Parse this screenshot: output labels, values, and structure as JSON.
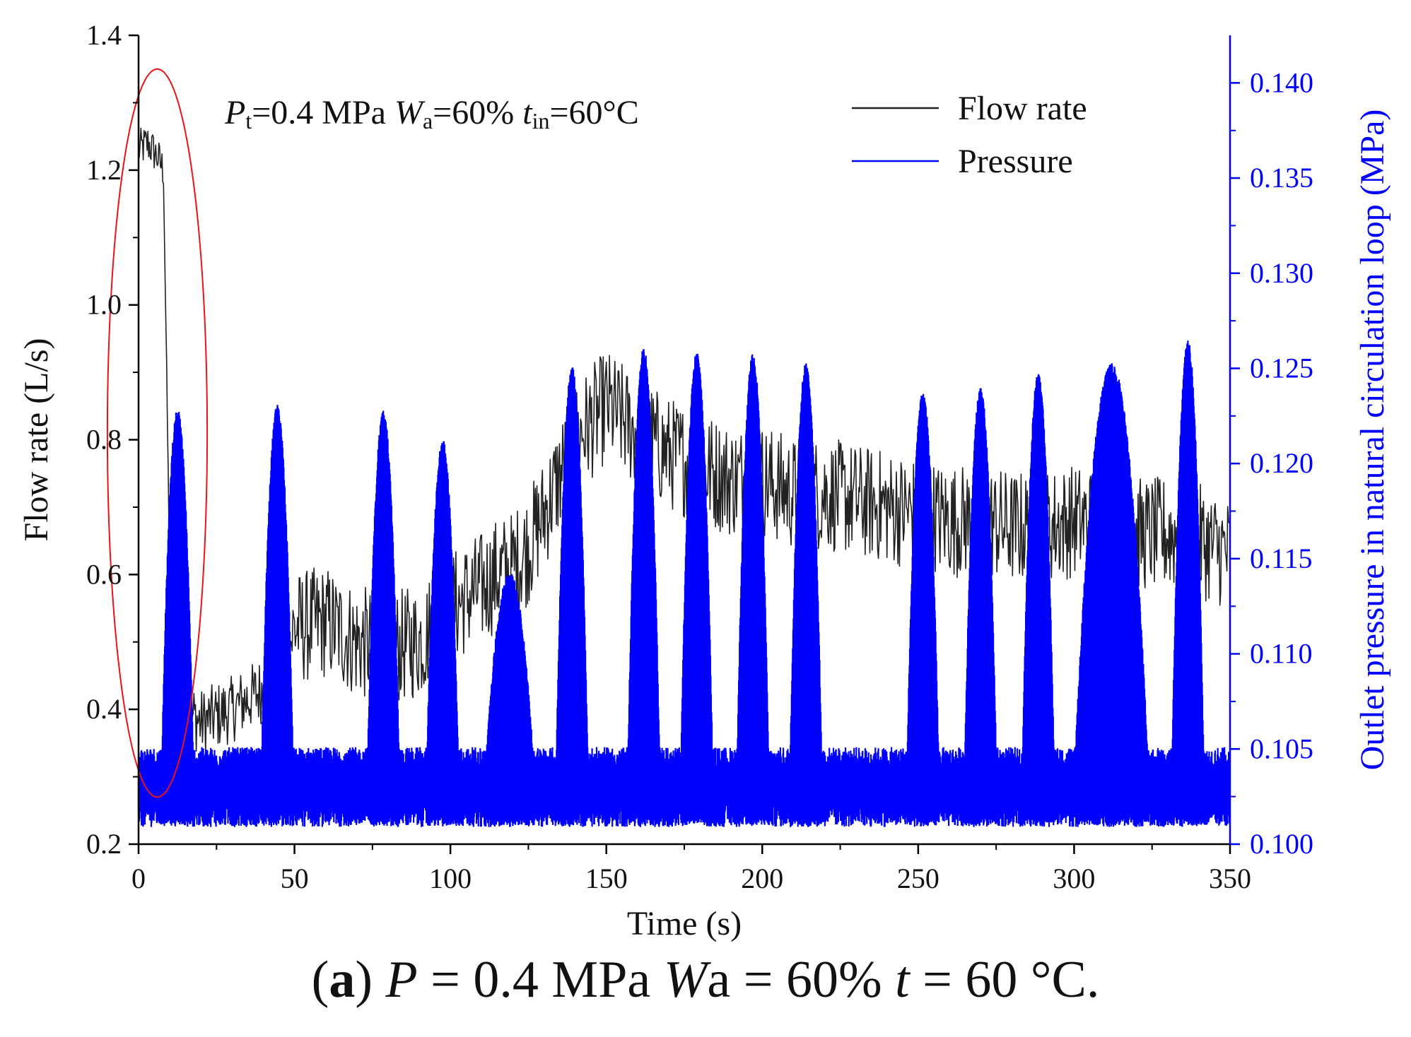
{
  "chart_data": {
    "type": "line",
    "title": "",
    "xlabel": "Time (s)",
    "ylabel_left": "Flow rate (L/s)",
    "ylabel_right": "Outlet pressure in natural circulation loop (MPa)",
    "xlim": [
      0,
      350
    ],
    "ylim_left": [
      0.2,
      1.4
    ],
    "ylim_right": [
      0.1,
      0.1425
    ],
    "x_ticks": [
      "0",
      "50",
      "100",
      "150",
      "200",
      "250",
      "300",
      "350"
    ],
    "y_ticks_left": [
      "0.2",
      "0.4",
      "0.6",
      "0.8",
      "1.0",
      "1.2",
      "1.4"
    ],
    "y_ticks_right": [
      "0.100",
      "0.105",
      "0.110",
      "0.115",
      "0.120",
      "0.125",
      "0.130",
      "0.135",
      "0.140"
    ],
    "annotation": {
      "p_sym": "P",
      "p_sub": "t",
      "p_val": "=0.4 MPa ",
      "w_sym": "W",
      "w_sub": "a",
      "w_val": "=60% ",
      "t_sym": "t",
      "t_sub": "in",
      "t_val": "=60°C"
    },
    "highlight": {
      "description_marker": "red ellipse",
      "x_range": [
        -10,
        22
      ],
      "y_range_left": [
        0.27,
        1.35
      ]
    },
    "series": [
      {
        "name": "Flow rate",
        "axis": "left",
        "color": "#222222",
        "x": [
          0,
          3,
          6,
          8,
          9,
          10,
          12,
          15,
          20,
          30,
          40,
          45,
          50,
          60,
          70,
          80,
          90,
          100,
          110,
          115,
          120,
          125,
          130,
          140,
          150,
          155,
          160,
          170,
          180,
          190,
          200,
          210,
          220,
          230,
          240,
          250,
          260,
          270,
          280,
          290,
          300,
          310,
          320,
          330,
          340,
          350
        ],
        "values": [
          1.23,
          1.24,
          1.22,
          1.2,
          0.9,
          0.6,
          0.45,
          0.4,
          0.38,
          0.4,
          0.43,
          0.45,
          0.52,
          0.53,
          0.5,
          0.49,
          0.5,
          0.55,
          0.58,
          0.6,
          0.61,
          0.64,
          0.69,
          0.8,
          0.85,
          0.83,
          0.81,
          0.78,
          0.76,
          0.74,
          0.74,
          0.72,
          0.72,
          0.71,
          0.7,
          0.69,
          0.68,
          0.68,
          0.67,
          0.67,
          0.68,
          0.67,
          0.66,
          0.66,
          0.65,
          0.63
        ]
      },
      {
        "name": "Pressure",
        "axis": "right",
        "color": "#0000ff",
        "baseline": 0.1032,
        "noise_band": [
          0.1015,
          0.1045
        ],
        "peaks": [
          {
            "t": 12.5,
            "value": 0.1226
          },
          {
            "t": 44.5,
            "value": 0.1228
          },
          {
            "t": 78.5,
            "value": 0.1225
          },
          {
            "t": 97.5,
            "value": 0.121
          },
          {
            "t": 119.0,
            "value": 0.114
          },
          {
            "t": 139.0,
            "value": 0.1248
          },
          {
            "t": 162.0,
            "value": 0.1258
          },
          {
            "t": 179.0,
            "value": 0.1256
          },
          {
            "t": 197.0,
            "value": 0.1255
          },
          {
            "t": 214.0,
            "value": 0.125
          },
          {
            "t": 251.5,
            "value": 0.1235
          },
          {
            "t": 270.0,
            "value": 0.1237
          },
          {
            "t": 288.5,
            "value": 0.1245
          },
          {
            "t": 312.0,
            "value": 0.125
          },
          {
            "t": 336.5,
            "value": 0.1262
          }
        ]
      }
    ]
  },
  "caption": {
    "label": "a",
    "text_1": " = 0.4 MPa ",
    "p": "P",
    "w": "W",
    "text_2": "a = 60% ",
    "t": "t",
    "text_3": " = 60 °C."
  }
}
